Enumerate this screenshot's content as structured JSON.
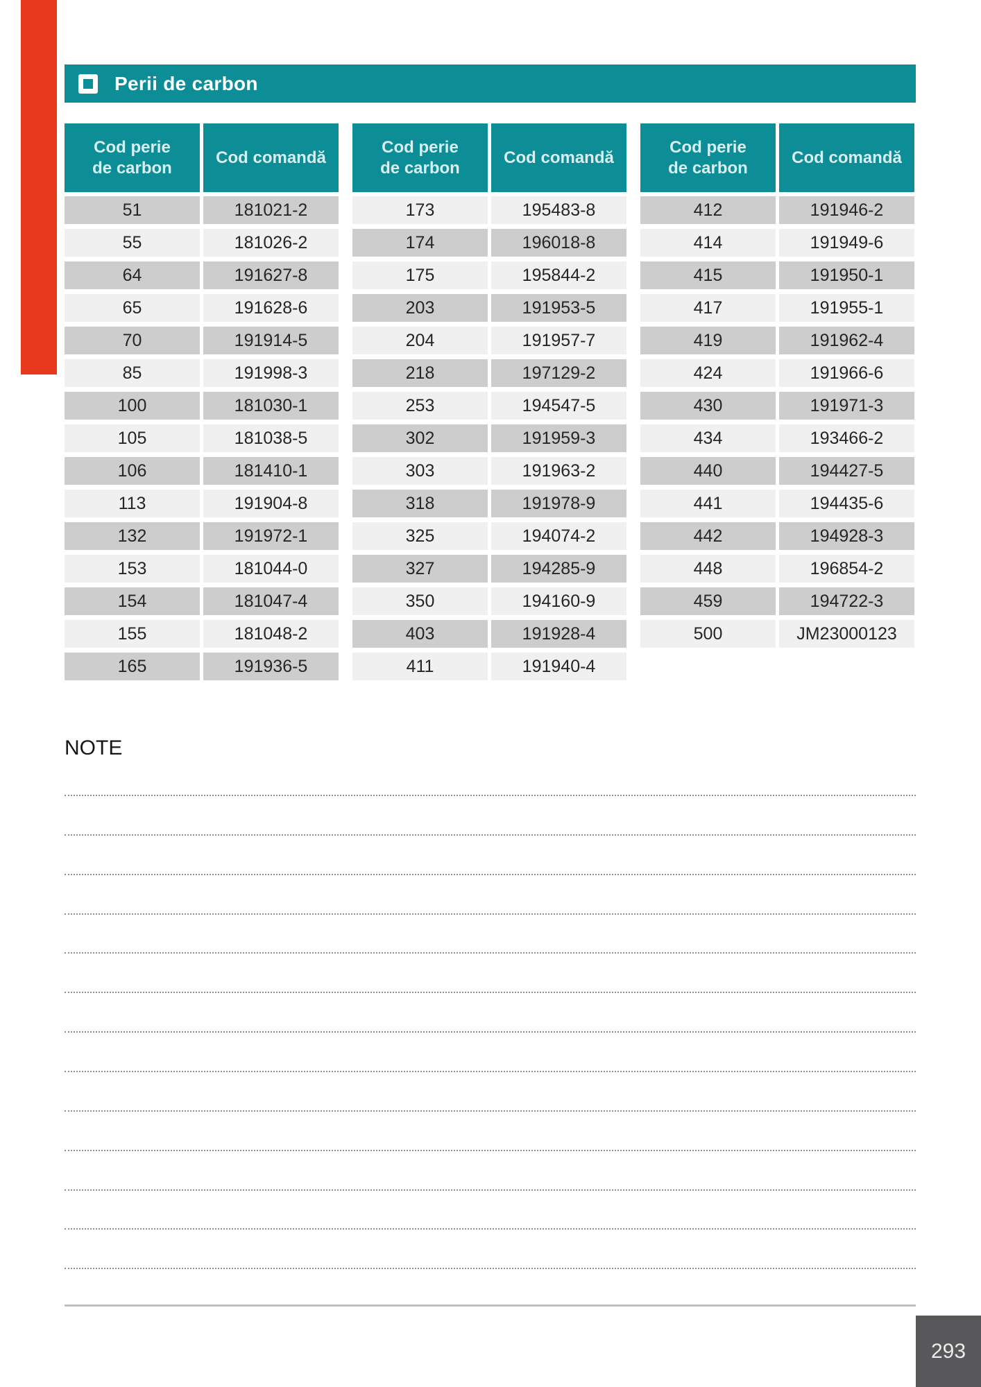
{
  "header": {
    "title": "Perii de carbon"
  },
  "colors": {
    "teal": "#0d8d96",
    "tab_red": "#e8391d",
    "row_dark": "#cdcdcd",
    "row_light": "#f0f0f0",
    "footer_gray": "#58585a"
  },
  "tables": [
    {
      "headers": {
        "col1_lines": [
          "Cod perie",
          "de carbon"
        ],
        "col2": "Cod comandă"
      },
      "first_row_shade": "dark",
      "rows": [
        [
          "51",
          "181021-2"
        ],
        [
          "55",
          "181026-2"
        ],
        [
          "64",
          "191627-8"
        ],
        [
          "65",
          "191628-6"
        ],
        [
          "70",
          "191914-5"
        ],
        [
          "85",
          "191998-3"
        ],
        [
          "100",
          "181030-1"
        ],
        [
          "105",
          "181038-5"
        ],
        [
          "106",
          "181410-1"
        ],
        [
          "113",
          "191904-8"
        ],
        [
          "132",
          "191972-1"
        ],
        [
          "153",
          "181044-0"
        ],
        [
          "154",
          "181047-4"
        ],
        [
          "155",
          "181048-2"
        ],
        [
          "165",
          "191936-5"
        ]
      ]
    },
    {
      "headers": {
        "col1_lines": [
          "Cod perie",
          "de carbon"
        ],
        "col2": "Cod comandă"
      },
      "first_row_shade": "light",
      "rows": [
        [
          "173",
          "195483-8"
        ],
        [
          "174",
          "196018-8"
        ],
        [
          "175",
          "195844-2"
        ],
        [
          "203",
          "191953-5"
        ],
        [
          "204",
          "191957-7"
        ],
        [
          "218",
          "197129-2"
        ],
        [
          "253",
          "194547-5"
        ],
        [
          "302",
          "191959-3"
        ],
        [
          "303",
          "191963-2"
        ],
        [
          "318",
          "191978-9"
        ],
        [
          "325",
          "194074-2"
        ],
        [
          "327",
          "194285-9"
        ],
        [
          "350",
          "194160-9"
        ],
        [
          "403",
          "191928-4"
        ],
        [
          "411",
          "191940-4"
        ]
      ]
    },
    {
      "headers": {
        "col1_lines": [
          "Cod perie",
          "de carbon"
        ],
        "col2": "Cod comandă"
      },
      "first_row_shade": "dark",
      "rows": [
        [
          "412",
          "191946-2"
        ],
        [
          "414",
          "191949-6"
        ],
        [
          "415",
          "191950-1"
        ],
        [
          "417",
          "191955-1"
        ],
        [
          "419",
          "191962-4"
        ],
        [
          "424",
          "191966-6"
        ],
        [
          "430",
          "191971-3"
        ],
        [
          "434",
          "193466-2"
        ],
        [
          "440",
          "194427-5"
        ],
        [
          "441",
          "194435-6"
        ],
        [
          "442",
          "194928-3"
        ],
        [
          "448",
          "196854-2"
        ],
        [
          "459",
          "194722-3"
        ],
        [
          "500",
          "JM23000123"
        ]
      ]
    }
  ],
  "note": {
    "label": "NOTE",
    "line_count": 13
  },
  "footer": {
    "page_number": "293"
  }
}
